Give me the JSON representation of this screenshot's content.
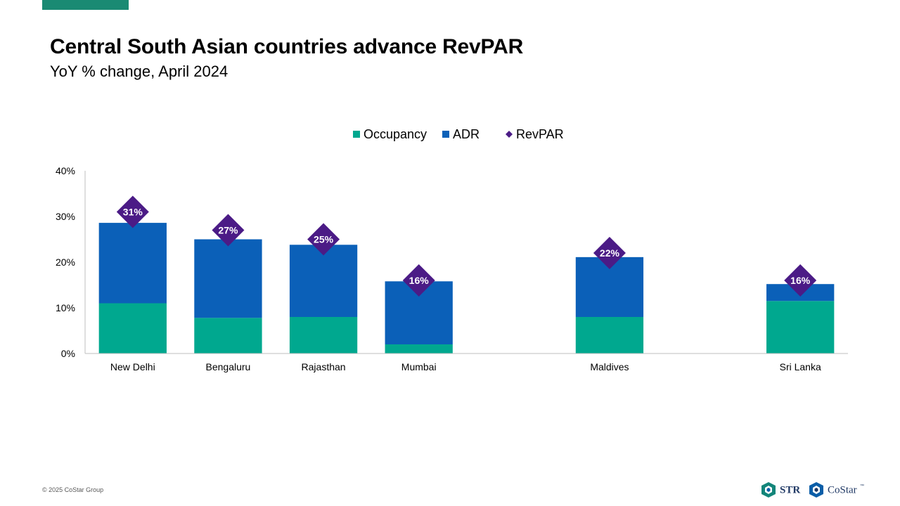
{
  "slide": {
    "title": "Central South Asian countries advance RevPAR",
    "subtitle": "YoY % change, April 2024",
    "copyright": "© 2025 CoStar Group",
    "accent_color": "#1a8a73"
  },
  "logos": {
    "str_label": "STR",
    "str_icon": "str-logo-icon",
    "costar_label": "CoStar",
    "costar_icon": "costar-logo-icon",
    "trademark": "™"
  },
  "chart_data": {
    "type": "bar",
    "stacked": true,
    "categories": [
      "New Delhi",
      "Bengaluru",
      "Rajasthan",
      "Mumbai",
      "",
      "Maldives",
      "",
      "Sri Lanka"
    ],
    "series": [
      {
        "name": "Occupancy",
        "type": "bar",
        "color": "#00a88f",
        "values": [
          11,
          7.8,
          8,
          2,
          null,
          8,
          null,
          11.5
        ]
      },
      {
        "name": "ADR",
        "type": "bar",
        "color": "#0b60b8",
        "values": [
          17.6,
          17.2,
          15.8,
          13.8,
          null,
          13.1,
          null,
          3.7
        ]
      },
      {
        "name": "RevPAR",
        "type": "scatter",
        "marker": "diamond",
        "color": "#4b1b86",
        "values": [
          31,
          27,
          25,
          16,
          null,
          22,
          null,
          16
        ],
        "labels": [
          "31%",
          "27%",
          "25%",
          "16%",
          "",
          "22%",
          "",
          "16%"
        ]
      }
    ],
    "yticks": [
      "0%",
      "10%",
      "20%",
      "30%",
      "40%"
    ],
    "ylim": [
      0,
      40
    ],
    "legend": "top",
    "grid": false
  }
}
